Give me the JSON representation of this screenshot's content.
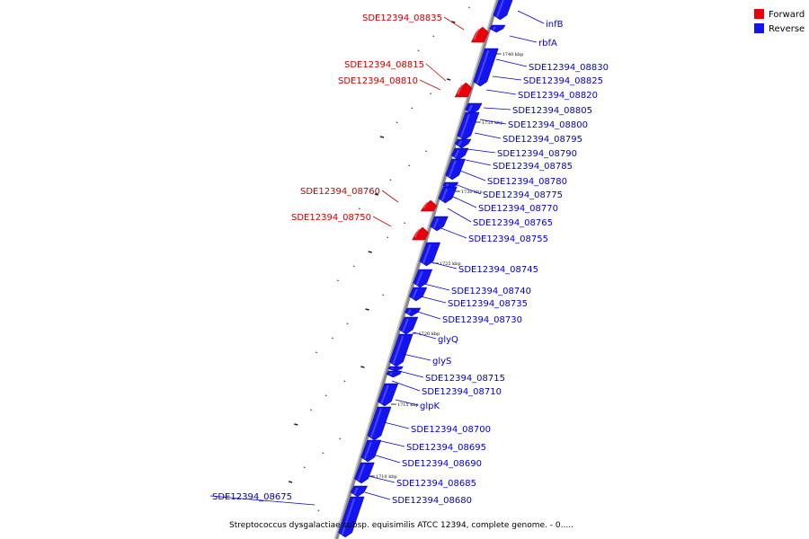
{
  "caption": "Streptococcus dysgalactiae subsp. equisimilis ATCC 12394, complete genome. - 0.....",
  "colors": {
    "forward": "#e8000a",
    "reverse": "#1414f0",
    "backbone": "#888888",
    "label_forward": "#cc0000",
    "label_reverse": "#0000cc"
  },
  "legend": [
    {
      "label": "Forward",
      "color": "#e8000a"
    },
    {
      "label": "Reverse",
      "color": "#1414f0"
    }
  ],
  "ticks": [
    {
      "label": "1740 kbp",
      "pos": 1740
    },
    {
      "label": "1735 kbp",
      "pos": 1735
    },
    {
      "label": "1730 kbp",
      "pos": 1730
    },
    {
      "label": "1725 kbp",
      "pos": 1725
    },
    {
      "label": "1720 kbp",
      "pos": 1720
    },
    {
      "label": "1715 kbp",
      "pos": 1715
    },
    {
      "label": "1710 kbp",
      "pos": 1710
    }
  ],
  "genes": [
    {
      "name": "infB",
      "strand": "reverse"
    },
    {
      "name": "rbfA",
      "strand": "reverse"
    },
    {
      "name": "SDE12394_08835",
      "strand": "forward"
    },
    {
      "name": "SDE12394_08830",
      "strand": "reverse"
    },
    {
      "name": "SDE12394_08825",
      "strand": "reverse"
    },
    {
      "name": "SDE12394_08815",
      "strand": "forward"
    },
    {
      "name": "SDE12394_08810",
      "strand": "forward"
    },
    {
      "name": "SDE12394_08820",
      "strand": "reverse"
    },
    {
      "name": "SDE12394_08805",
      "strand": "reverse"
    },
    {
      "name": "SDE12394_08800",
      "strand": "reverse"
    },
    {
      "name": "SDE12394_08795",
      "strand": "reverse"
    },
    {
      "name": "SDE12394_08790",
      "strand": "reverse"
    },
    {
      "name": "SDE12394_08785",
      "strand": "reverse"
    },
    {
      "name": "SDE12394_08780",
      "strand": "reverse"
    },
    {
      "name": "SDE12394_08775",
      "strand": "reverse"
    },
    {
      "name": "SDE12394_08760",
      "strand": "forward"
    },
    {
      "name": "SDE12394_08770",
      "strand": "reverse"
    },
    {
      "name": "SDE12394_08750",
      "strand": "forward"
    },
    {
      "name": "SDE12394_08765",
      "strand": "reverse"
    },
    {
      "name": "SDE12394_08755",
      "strand": "reverse"
    },
    {
      "name": "SDE12394_08745",
      "strand": "reverse"
    },
    {
      "name": "SDE12394_08740",
      "strand": "reverse"
    },
    {
      "name": "SDE12394_08735",
      "strand": "reverse"
    },
    {
      "name": "SDE12394_08730",
      "strand": "reverse"
    },
    {
      "name": "glyQ",
      "strand": "reverse"
    },
    {
      "name": "glyS",
      "strand": "reverse"
    },
    {
      "name": "SDE12394_08715",
      "strand": "reverse"
    },
    {
      "name": "SDE12394_08710",
      "strand": "reverse"
    },
    {
      "name": "glpK",
      "strand": "reverse"
    },
    {
      "name": "SDE12394_08700",
      "strand": "reverse"
    },
    {
      "name": "SDE12394_08695",
      "strand": "reverse"
    },
    {
      "name": "SDE12394_08690",
      "strand": "reverse"
    },
    {
      "name": "SDE12394_08685",
      "strand": "reverse"
    },
    {
      "name": "SDE12394_08675",
      "strand": "reverse"
    },
    {
      "name": "SDE12394_08680",
      "strand": "reverse"
    }
  ]
}
